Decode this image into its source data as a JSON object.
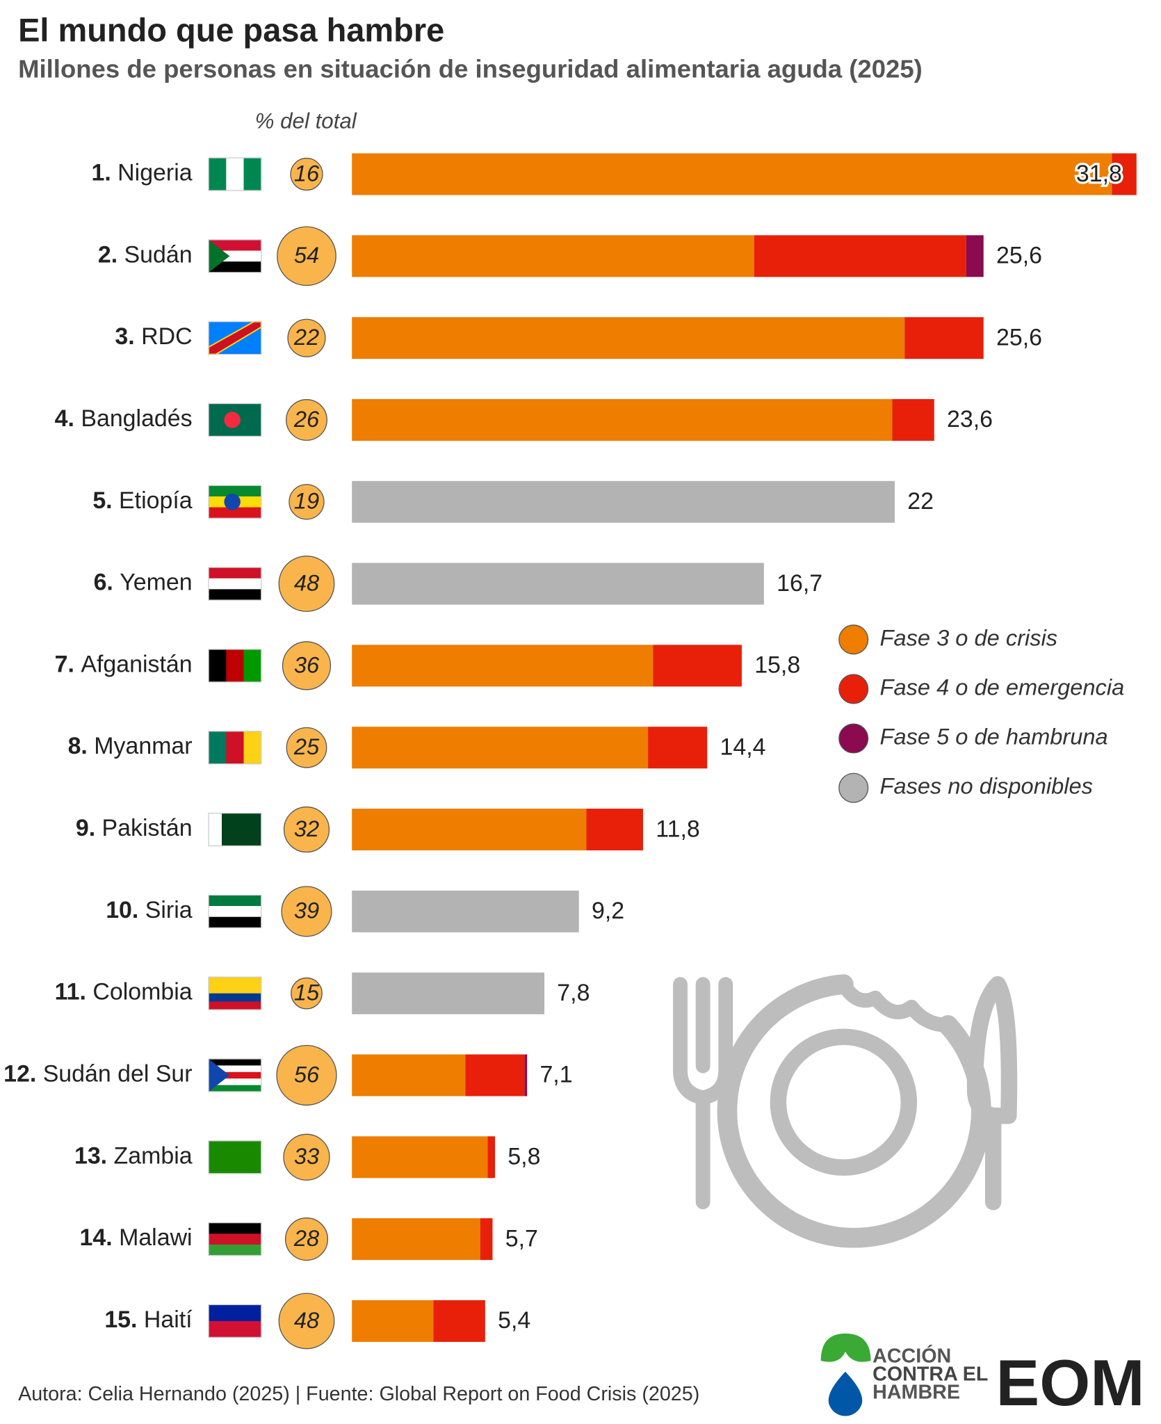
{
  "chart_data": {
    "type": "stacked-bar-horizontal",
    "title": "El mundo que pasa hambre",
    "subtitle": "Millones de personas en situación de inseguridad alimentaria aguda (2025)",
    "pct_header": "% del total",
    "ranks": [
      "1.",
      "2.",
      "3.",
      "4.",
      "5.",
      "6.",
      "7.",
      "8.",
      "9.",
      "10.",
      "11.",
      "12.",
      "13.",
      "14.",
      "15."
    ],
    "categories": [
      "Nigeria",
      "Sudán",
      "RDC",
      "Bangladés",
      "Etiopía",
      "Yemen",
      "Afganistán",
      "Myanmar",
      "Pakistán",
      "Siria",
      "Colombia",
      "Sudán del Sur",
      "Zambia",
      "Malawi",
      "Haití"
    ],
    "pct": [
      16,
      54,
      22,
      26,
      19,
      48,
      36,
      25,
      32,
      39,
      15,
      56,
      33,
      28,
      48
    ],
    "series": [
      {
        "name": "Fase 3 o de crisis",
        "color": "#ee7d00",
        "values": [
          30.8,
          16.3,
          22.4,
          21.9,
          null,
          null,
          12.2,
          12.0,
          9.5,
          null,
          null,
          4.6,
          5.5,
          5.2,
          3.3
        ]
      },
      {
        "name": "Fase 4 o de emergencia",
        "color": "#e8200a",
        "values": [
          1.0,
          8.6,
          3.2,
          1.7,
          null,
          null,
          3.6,
          2.4,
          2.3,
          null,
          null,
          2.4,
          0.3,
          0.5,
          2.1
        ]
      },
      {
        "name": "Fase 5 o de hambruna",
        "color": "#8b0a50",
        "values": [
          null,
          0.7,
          null,
          null,
          null,
          null,
          null,
          null,
          null,
          null,
          null,
          0.1,
          null,
          null,
          null
        ]
      },
      {
        "name": "Fases no disponibles",
        "color": "#b3b3b3",
        "values": [
          null,
          null,
          null,
          null,
          22,
          16.7,
          null,
          null,
          null,
          9.2,
          7.8,
          null,
          null,
          null,
          null
        ]
      }
    ],
    "totals": [
      31.8,
      25.6,
      25.6,
      23.6,
      22,
      16.7,
      15.8,
      14.4,
      11.8,
      9.2,
      7.8,
      7.1,
      5.8,
      5.7,
      5.4
    ],
    "total_labels": [
      "31,8",
      "25,6",
      "25,6",
      "23,6",
      "22",
      "16,7",
      "15,8",
      "14,4",
      "11,8",
      "9,2",
      "7,8",
      "7,1",
      "5,8",
      "5,7",
      "5,4"
    ],
    "pct_color": "#f9b54c",
    "footer": "Autora: Celia Hernando (2025) | Fuente: Global Report on Food Crisis (2025)",
    "logos": {
      "accion": [
        "ACCIÓN",
        "CONTRA EL",
        "HAMBRE"
      ],
      "eom": "EOM"
    }
  }
}
